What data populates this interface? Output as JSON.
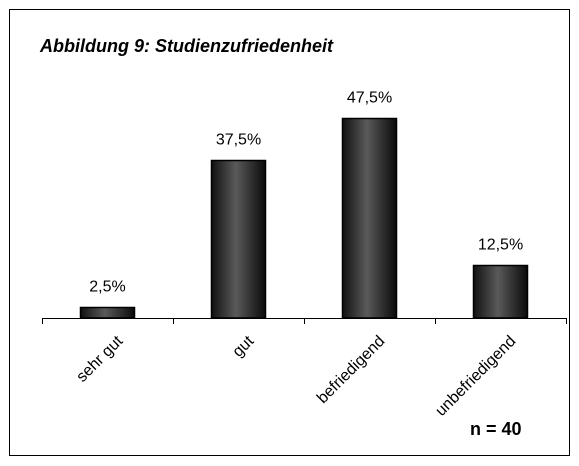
{
  "chart_data": {
    "type": "bar",
    "title": "Abbildung 9: Studienzufriedenheit",
    "categories": [
      "sehr gut",
      "gut",
      "befriedigend",
      "unbefriedigend"
    ],
    "values": [
      2.5,
      37.5,
      47.5,
      12.5
    ],
    "value_labels": [
      "2,5%",
      "37,5%",
      "47,5%",
      "12,5%"
    ],
    "color": "#2a2a2a",
    "ylim": [
      0,
      50
    ],
    "annotation": "n = 40"
  }
}
